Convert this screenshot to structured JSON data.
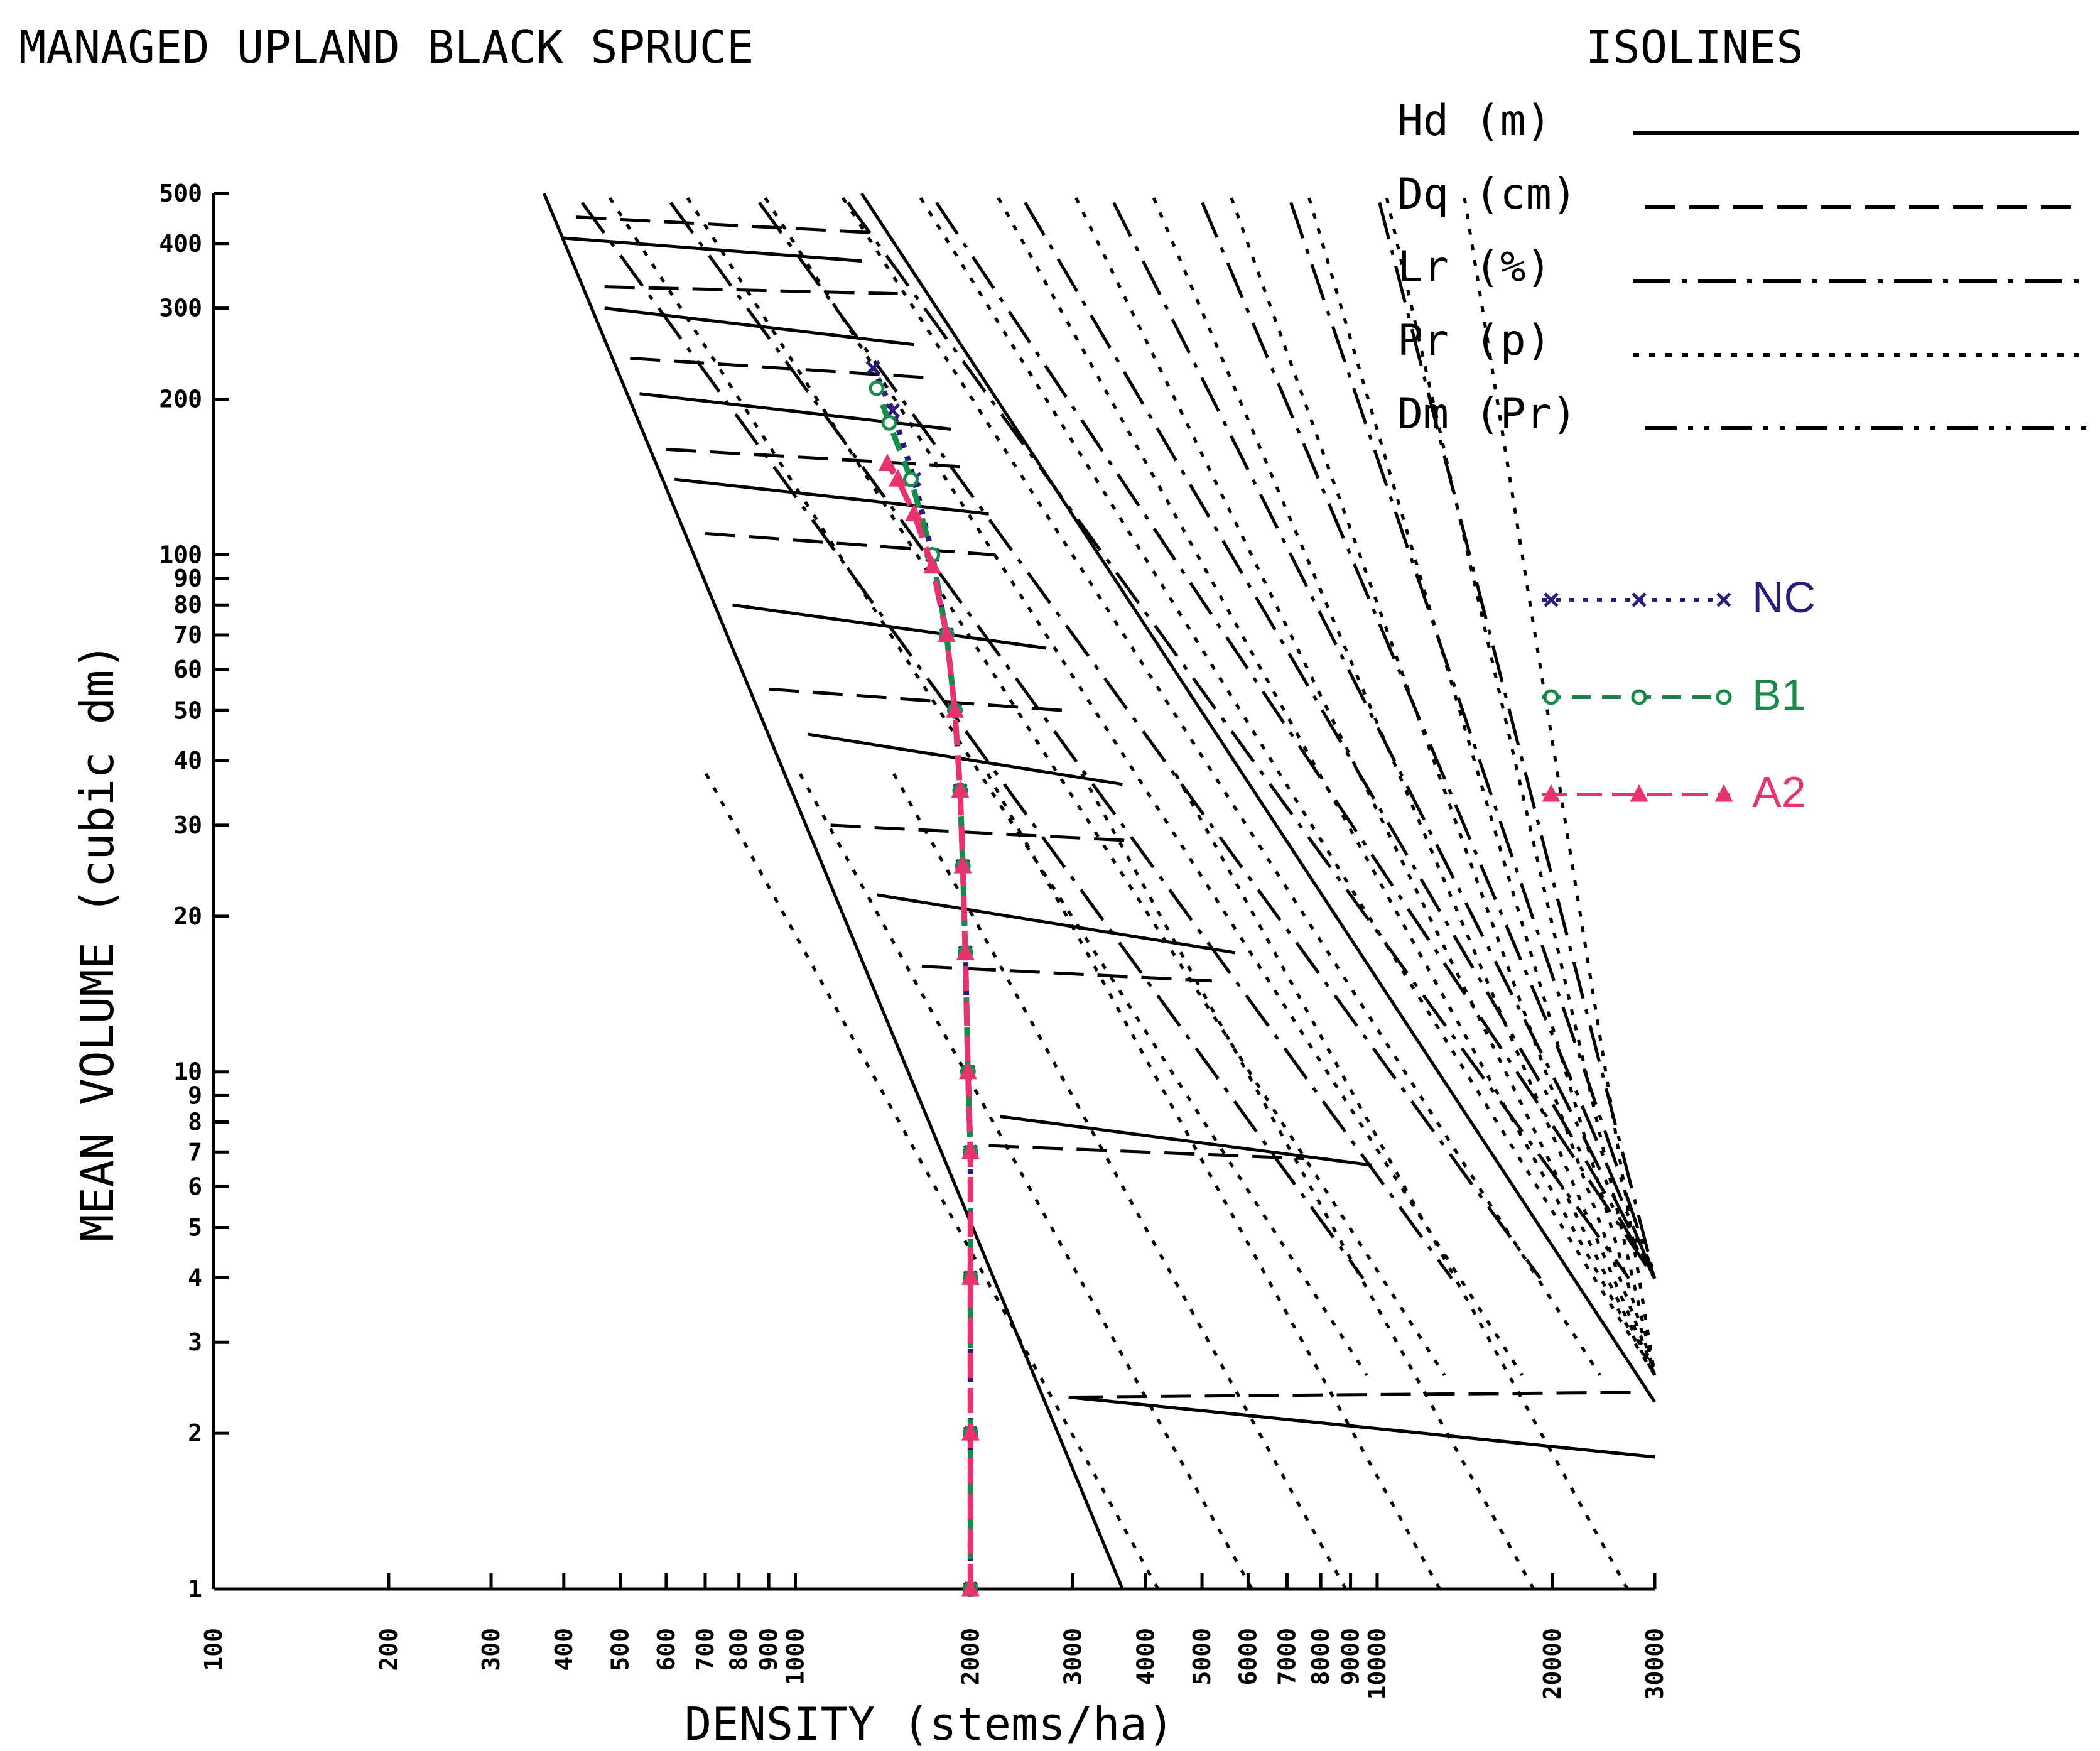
{
  "chart_data": {
    "type": "line",
    "title": "MANAGED UPLAND BLACK SPRUCE",
    "xlabel": "DENSITY (stems/ha)",
    "ylabel": "MEAN VOLUME (cubic dm)",
    "xscale": "log",
    "yscale": "log",
    "xlim": [
      100,
      30000
    ],
    "ylim": [
      1,
      500
    ],
    "x_ticks": [
      100,
      200,
      300,
      400,
      500,
      600,
      700,
      800,
      900,
      1000,
      2000,
      3000,
      4000,
      5000,
      6000,
      7000,
      8000,
      9000,
      10000,
      20000,
      30000
    ],
    "x_tick_labels": [
      "100",
      "200",
      "300",
      "400",
      "500",
      "600",
      "700",
      "800",
      "900",
      "1000",
      "2000",
      "3000",
      "4000",
      "5000",
      "6000",
      "7000",
      "8000",
      "9000",
      "10000",
      "20000",
      "30000"
    ],
    "y_ticks": [
      1,
      2,
      3,
      4,
      5,
      6,
      7,
      8,
      9,
      10,
      20,
      30,
      40,
      50,
      60,
      70,
      80,
      90,
      100,
      200,
      300,
      400,
      500
    ],
    "y_tick_labels": [
      "1",
      "2",
      "3",
      "4",
      "5",
      "6",
      "7",
      "8",
      "9",
      "10",
      "20",
      "30",
      "40",
      "50",
      "60",
      "70",
      "80",
      "90",
      "100",
      "200",
      "300",
      "400",
      "500"
    ],
    "isolines_legend": {
      "title": "ISOLINES",
      "entries": [
        {
          "label": "Hd (m)",
          "style": "solid"
        },
        {
          "label": "Dq (cm)",
          "style": "dashed"
        },
        {
          "label": "Lr (%)",
          "style": "dashdot"
        },
        {
          "label": "Pr (p)",
          "style": "dotted"
        },
        {
          "label": "Dm (Pr)",
          "style": "dashdotdot"
        }
      ]
    },
    "series": [
      {
        "name": "NC",
        "color": "#2e1a7a",
        "marker": "x",
        "line": "dotted",
        "x": [
          2000,
          2000,
          2000,
          2000,
          1980,
          1960,
          1940,
          1920,
          1880,
          1820,
          1720,
          1600,
          1470,
          1360
        ],
        "y": [
          1,
          2,
          4,
          7,
          10,
          17,
          25,
          35,
          50,
          70,
          100,
          140,
          190,
          230
        ]
      },
      {
        "name": "B1",
        "color": "#1a8a4a",
        "marker": "o",
        "line": "dashed",
        "x": [
          2000,
          2000,
          2000,
          2000,
          1980,
          1960,
          1940,
          1920,
          1880,
          1820,
          1720,
          1580,
          1450,
          1380
        ],
        "y": [
          1,
          2,
          4,
          7,
          10,
          17,
          25,
          35,
          50,
          70,
          100,
          140,
          180,
          210
        ]
      },
      {
        "name": "A2",
        "color": "#e8336e",
        "marker": "^",
        "line": "longdash",
        "x": [
          2000,
          2000,
          2000,
          2000,
          1980,
          1960,
          1940,
          1920,
          1880,
          1820,
          1720,
          1600,
          1500,
          1440
        ],
        "y": [
          1,
          2,
          4,
          7,
          10,
          17,
          25,
          35,
          50,
          70,
          95,
          120,
          140,
          150
        ]
      }
    ]
  }
}
